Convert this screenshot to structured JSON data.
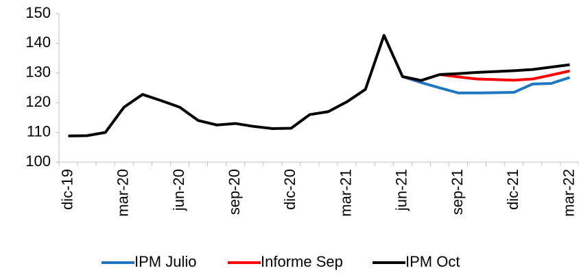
{
  "chart_data": {
    "type": "line",
    "categories": [
      "dic-19",
      null,
      null,
      "mar-20",
      null,
      null,
      "jun-20",
      null,
      null,
      "sep-20",
      null,
      null,
      "dic-20",
      null,
      null,
      "mar-21",
      null,
      null,
      "jun-21",
      null,
      null,
      "sep-21",
      null,
      null,
      "dic-21",
      null,
      null,
      "mar-22"
    ],
    "series": [
      {
        "name": "IPM Julio",
        "color": "#1f77c4",
        "values": [
          null,
          null,
          null,
          null,
          null,
          null,
          null,
          null,
          null,
          null,
          null,
          null,
          null,
          null,
          null,
          null,
          null,
          null,
          128.8,
          126.8,
          125,
          123.3,
          123.3,
          123.4,
          123.5,
          126.3,
          126.5,
          128.5
        ]
      },
      {
        "name": "Informe Sep",
        "color": "#ff0000",
        "values": [
          null,
          null,
          null,
          null,
          null,
          null,
          null,
          null,
          null,
          null,
          null,
          null,
          null,
          null,
          null,
          null,
          null,
          null,
          128.8,
          127.5,
          129.5,
          128.7,
          128,
          127.8,
          127.6,
          128,
          129.3,
          130.7
        ]
      },
      {
        "name": "IPM Oct",
        "color": "#000000",
        "values": [
          108.8,
          108.9,
          110,
          118.5,
          122.8,
          120.7,
          118.5,
          114,
          112.5,
          113,
          112,
          111.3,
          111.4,
          116,
          117,
          120.3,
          124.5,
          142.7,
          128.8,
          127.5,
          129.5,
          129.8,
          130.2,
          130.5,
          130.8,
          131.2,
          132,
          132.8
        ]
      }
    ],
    "ylim": [
      100,
      150
    ],
    "yticks": [
      100,
      110,
      120,
      130,
      140,
      150
    ],
    "grid": false,
    "legend": "bottom"
  }
}
